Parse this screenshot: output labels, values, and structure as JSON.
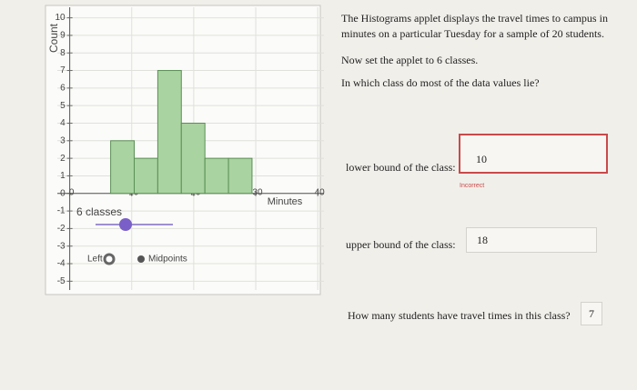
{
  "chart_data": {
    "type": "histogram",
    "y_label": "Count",
    "x_label": "Minutes",
    "bins": [
      6.6,
      10.4,
      14.2,
      18,
      21.8,
      25.6,
      29.4
    ],
    "values": [
      3,
      2,
      7,
      4,
      2,
      2
    ],
    "color": "#a9d3a0",
    "edge_color": "#5a8f55",
    "xlim": [
      -2,
      41
    ],
    "ylim": [
      -5.5,
      10.6
    ],
    "xticks": [
      0,
      10,
      20,
      30,
      40
    ],
    "yticks": [
      -5,
      -4,
      -3,
      -2,
      -1,
      0,
      1,
      2,
      3,
      4,
      5,
      6,
      7,
      8,
      9,
      10
    ],
    "grid": true
  },
  "controls": {
    "classes_label": "6 classes",
    "left_label": "Left",
    "midpoints_label": "Midpoints"
  },
  "question": {
    "paragraphs": [
      "The Histograms applet displays the travel times to campus in minutes on a particular Tuesday for a sample of 20 students.",
      "Now set the applet to 6 classes.",
      "In which class do most of the data values lie?"
    ],
    "lower_label": "lower bound of the class:",
    "lower_answer": "10",
    "feedback": "Incorrect",
    "upper_label": "upper bound of the class:",
    "upper_answer": "18",
    "count_question": "How many students have travel times in this class?",
    "count_answer": "7"
  }
}
